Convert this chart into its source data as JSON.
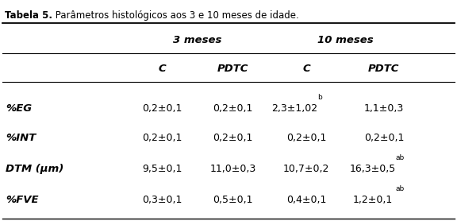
{
  "title_bold": "Tabela 5.",
  "title_rest": " Parâmetros histológicos aos 3 e 10 meses de idade.",
  "group_headers": [
    "3 meses",
    "10 meses"
  ],
  "col_headers": [
    "C",
    "PDTC",
    "C",
    "PDTC"
  ],
  "row_labels": [
    "%EG",
    "%INT",
    "DTM (μm)",
    "%FVE"
  ],
  "data": [
    [
      "0,2±0,1",
      "0,2±0,1",
      "2,3±1,02",
      "b",
      "1,1±0,3",
      ""
    ],
    [
      "0,2±0,1",
      "0,2±0,1",
      "0,2±0,1",
      "",
      "0,2±0,1",
      ""
    ],
    [
      "9,5±0,1",
      "11,0±0,3",
      "10,7±0,2",
      "",
      "16,3±0,5",
      "ab"
    ],
    [
      "0,3±0,1",
      "0,5±0,1",
      "0,4±0,1",
      "",
      "1,2±0,1",
      "ab"
    ]
  ],
  "bg_color": "#ffffff",
  "text_color": "#000000",
  "figsize": [
    5.76,
    2.78
  ],
  "dpi": 100
}
